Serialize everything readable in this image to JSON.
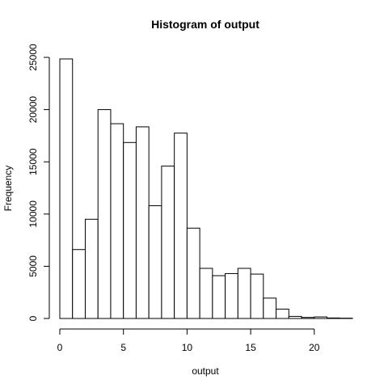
{
  "chart_data": {
    "type": "bar",
    "title": "Histogram of output",
    "xlabel": "output",
    "ylabel": "Frequency",
    "bin_edges": [
      0,
      1,
      2,
      3,
      4,
      5,
      6,
      7,
      8,
      9,
      10,
      11,
      12,
      13,
      14,
      15,
      16,
      17,
      18,
      19,
      20,
      21,
      22,
      23
    ],
    "values": [
      24850,
      6600,
      9500,
      20000,
      18650,
      16850,
      18350,
      10800,
      14600,
      17750,
      8650,
      4800,
      4100,
      4300,
      4800,
      4250,
      1950,
      900,
      200,
      100,
      150,
      50,
      30
    ],
    "xlim": [
      0,
      23
    ],
    "ylim": [
      0,
      25000
    ],
    "xticks": [
      0,
      5,
      10,
      15,
      20
    ],
    "yticks": [
      0,
      5000,
      10000,
      15000,
      20000,
      25000
    ],
    "grid": false,
    "bar_color": "#ffffff",
    "edge_color": "#000000"
  }
}
